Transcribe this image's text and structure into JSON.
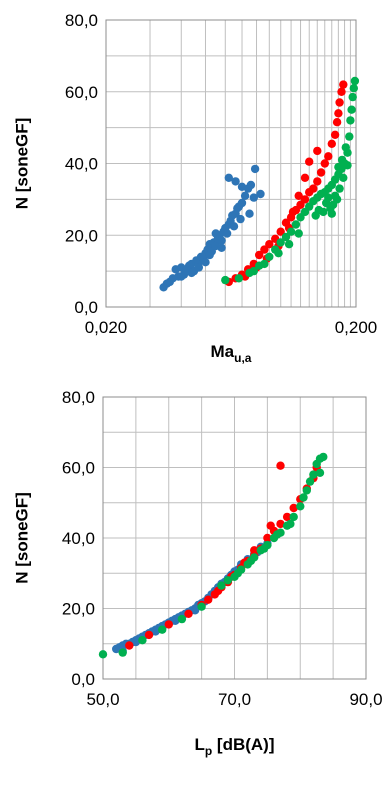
{
  "chart_data": [
    {
      "type": "scatter",
      "title": "",
      "x_scale": "log",
      "xlim": [
        0.02,
        0.2
      ],
      "ylim": [
        0,
        80
      ],
      "xlabel": {
        "main": "Ma",
        "sub": "u,a"
      },
      "ylabel": "N [soneGF]",
      "x_tick_labels": [
        "0,020",
        "0,200"
      ],
      "y_tick_labels": [
        "0,0",
        "20,0",
        "40,0",
        "60,0",
        "80,0"
      ],
      "x_ticks": [
        0.02,
        0.2
      ],
      "y_ticks": [
        0,
        20,
        40,
        60,
        80
      ],
      "x_grid": [
        0.02,
        0.03,
        0.04,
        0.05,
        0.06,
        0.07,
        0.08,
        0.09,
        0.1,
        0.11,
        0.12,
        0.13,
        0.14,
        0.15,
        0.16,
        0.17,
        0.18,
        0.19,
        0.2
      ],
      "y_grid": [
        0,
        10,
        20,
        30,
        40,
        50,
        60,
        70,
        80
      ],
      "grid": true,
      "legend": "none",
      "series": [
        {
          "color": "#2e75b6",
          "points": [
            [
              0.034,
              5.5
            ],
            [
              0.035,
              6.5
            ],
            [
              0.036,
              7.0
            ],
            [
              0.037,
              8.0
            ],
            [
              0.038,
              10.5
            ],
            [
              0.039,
              8.5
            ],
            [
              0.04,
              11.0
            ],
            [
              0.041,
              9.0
            ],
            [
              0.042,
              10.5
            ],
            [
              0.043,
              11.5
            ],
            [
              0.044,
              12.0
            ],
            [
              0.045,
              10.0
            ],
            [
              0.046,
              13.0
            ],
            [
              0.047,
              12.5
            ],
            [
              0.048,
              14.0
            ],
            [
              0.049,
              13.5
            ],
            [
              0.05,
              15.0
            ],
            [
              0.051,
              16.0
            ],
            [
              0.052,
              17.5
            ],
            [
              0.053,
              15.5
            ],
            [
              0.054,
              18.0
            ],
            [
              0.055,
              17.0
            ],
            [
              0.056,
              19.0
            ],
            [
              0.057,
              20.0
            ],
            [
              0.058,
              18.5
            ],
            [
              0.059,
              21.0
            ],
            [
              0.06,
              22.0
            ],
            [
              0.061,
              20.5
            ],
            [
              0.062,
              23.0
            ],
            [
              0.063,
              24.0
            ],
            [
              0.064,
              25.5
            ],
            [
              0.065,
              22.5
            ],
            [
              0.066,
              26.0
            ],
            [
              0.067,
              27.5
            ],
            [
              0.068,
              28.0
            ],
            [
              0.069,
              24.5
            ],
            [
              0.07,
              29.0
            ],
            [
              0.072,
              31.0
            ],
            [
              0.074,
              33.0
            ],
            [
              0.076,
              34.0
            ],
            [
              0.062,
              36.0
            ],
            [
              0.066,
              35.0
            ],
            [
              0.07,
              33.5
            ],
            [
              0.079,
              38.5
            ],
            [
              0.083,
              31.5
            ],
            [
              0.078,
              30.5
            ],
            [
              0.075,
              26.0
            ],
            [
              0.058,
              16.5
            ],
            [
              0.052,
              14.5
            ],
            [
              0.047,
              11.0
            ],
            [
              0.044,
              9.5
            ],
            [
              0.04,
              8.5
            ],
            [
              0.055,
              20.5
            ],
            [
              0.05,
              12.5
            ]
          ]
        },
        {
          "color": "#ff0000",
          "points": [
            [
              0.062,
              7.0
            ],
            [
              0.066,
              8.0
            ],
            [
              0.07,
              9.0
            ],
            [
              0.074,
              10.5
            ],
            [
              0.078,
              12.0
            ],
            [
              0.082,
              14.5
            ],
            [
              0.086,
              16.0
            ],
            [
              0.09,
              17.5
            ],
            [
              0.095,
              19.0
            ],
            [
              0.1,
              21.0
            ],
            [
              0.105,
              23.5
            ],
            [
              0.11,
              25.0
            ],
            [
              0.115,
              27.0
            ],
            [
              0.12,
              28.5
            ],
            [
              0.125,
              30.0
            ],
            [
              0.13,
              32.0
            ],
            [
              0.135,
              33.0
            ],
            [
              0.14,
              35.0
            ],
            [
              0.145,
              37.5
            ],
            [
              0.15,
              40.0
            ],
            [
              0.155,
              42.0
            ],
            [
              0.16,
              45.5
            ],
            [
              0.165,
              48.0
            ],
            [
              0.168,
              51.5
            ],
            [
              0.17,
              54.0
            ],
            [
              0.172,
              57.0
            ],
            [
              0.175,
              60.0
            ],
            [
              0.178,
              62.0
            ],
            [
              0.14,
              43.5
            ],
            [
              0.13,
              40.5
            ],
            [
              0.125,
              36.0
            ],
            [
              0.118,
              31.0
            ],
            [
              0.112,
              26.5
            ],
            [
              0.108,
              22.0
            ],
            [
              0.098,
              17.0
            ],
            [
              0.088,
              13.5
            ],
            [
              0.08,
              11.0
            ],
            [
              0.072,
              8.5
            ]
          ]
        },
        {
          "color": "#00b050",
          "points": [
            [
              0.06,
              7.5
            ],
            [
              0.068,
              8.0
            ],
            [
              0.075,
              9.5
            ],
            [
              0.082,
              11.5
            ],
            [
              0.09,
              14.0
            ],
            [
              0.095,
              16.0
            ],
            [
              0.1,
              18.0
            ],
            [
              0.105,
              19.5
            ],
            [
              0.11,
              21.0
            ],
            [
              0.115,
              23.0
            ],
            [
              0.12,
              25.0
            ],
            [
              0.125,
              26.5
            ],
            [
              0.13,
              28.0
            ],
            [
              0.135,
              29.5
            ],
            [
              0.14,
              30.5
            ],
            [
              0.145,
              31.5
            ],
            [
              0.15,
              32.0
            ],
            [
              0.155,
              33.0
            ],
            [
              0.16,
              34.0
            ],
            [
              0.165,
              35.5
            ],
            [
              0.17,
              37.0
            ],
            [
              0.175,
              38.5
            ],
            [
              0.18,
              40.0
            ],
            [
              0.185,
              43.0
            ],
            [
              0.188,
              47.5
            ],
            [
              0.19,
              52.0
            ],
            [
              0.192,
              55.0
            ],
            [
              0.194,
              58.5
            ],
            [
              0.196,
              61.0
            ],
            [
              0.198,
              63.0
            ],
            [
              0.185,
              39.5
            ],
            [
              0.178,
              36.0
            ],
            [
              0.172,
              33.0
            ],
            [
              0.168,
              30.0
            ],
            [
              0.162,
              28.5
            ],
            [
              0.158,
              27.5
            ],
            [
              0.152,
              29.0
            ],
            [
              0.148,
              26.5
            ],
            [
              0.142,
              27.0
            ],
            [
              0.138,
              25.5
            ],
            [
              0.118,
              20.5
            ],
            [
              0.108,
              17.5
            ],
            [
              0.098,
              15.0
            ],
            [
              0.086,
              12.0
            ],
            [
              0.078,
              10.0
            ],
            [
              0.182,
              44.5
            ],
            [
              0.176,
              41.0
            ],
            [
              0.17,
              39.0
            ],
            [
              0.165,
              31.0
            ],
            [
              0.16,
              26.0
            ],
            [
              0.155,
              30.5
            ]
          ]
        }
      ]
    },
    {
      "type": "scatter",
      "title": "",
      "x_scale": "linear",
      "xlim": [
        50,
        90
      ],
      "ylim": [
        0,
        80
      ],
      "xlabel": {
        "main": "L",
        "sub": "p",
        "rest": " [dB(A)]"
      },
      "ylabel": "N [soneGF]",
      "x_tick_labels": [
        "50,0",
        "70,0",
        "90,0"
      ],
      "y_tick_labels": [
        "0,0",
        "20,0",
        "40,0",
        "60,0",
        "80,0"
      ],
      "x_ticks": [
        50,
        70,
        90
      ],
      "y_ticks": [
        0,
        20,
        40,
        60,
        80
      ],
      "x_grid": [
        50,
        55,
        60,
        65,
        70,
        75,
        80,
        85,
        90
      ],
      "y_grid": [
        0,
        10,
        20,
        30,
        40,
        50,
        60,
        70,
        80
      ],
      "grid": true,
      "legend": "none",
      "series": [
        {
          "color": "#2e75b6",
          "points": [
            [
              52.0,
              8.5
            ],
            [
              52.5,
              9.0
            ],
            [
              53.0,
              9.5
            ],
            [
              53.5,
              10.0
            ],
            [
              54.0,
              10.0
            ],
            [
              54.5,
              10.5
            ],
            [
              55.0,
              11.0
            ],
            [
              55.5,
              11.5
            ],
            [
              56.0,
              12.0
            ],
            [
              56.5,
              12.5
            ],
            [
              57.0,
              13.0
            ],
            [
              57.5,
              13.5
            ],
            [
              58.0,
              14.0
            ],
            [
              58.5,
              14.5
            ],
            [
              59.0,
              15.0
            ],
            [
              59.5,
              15.5
            ],
            [
              60.0,
              16.0
            ],
            [
              60.5,
              16.5
            ],
            [
              61.0,
              17.0
            ],
            [
              61.5,
              17.5
            ],
            [
              62.0,
              18.0
            ],
            [
              62.5,
              18.5
            ],
            [
              63.0,
              19.0
            ],
            [
              63.5,
              19.5
            ],
            [
              64.0,
              20.0
            ],
            [
              64.5,
              21.0
            ],
            [
              65.0,
              21.5
            ],
            [
              65.5,
              22.0
            ],
            [
              66.0,
              23.0
            ],
            [
              66.5,
              24.0
            ],
            [
              67.0,
              25.0
            ],
            [
              67.5,
              26.0
            ],
            [
              68.0,
              27.0
            ],
            [
              68.5,
              27.5
            ],
            [
              69.0,
              28.5
            ],
            [
              69.5,
              29.5
            ],
            [
              70.0,
              30.5
            ],
            [
              71.0,
              32.5
            ],
            [
              72.0,
              34.0
            ],
            [
              73.0,
              35.5
            ],
            [
              74.0,
              37.5
            ],
            [
              75.0,
              38.5
            ],
            [
              53.0,
              8.0
            ],
            [
              55.0,
              10.5
            ],
            [
              58.0,
              13.5
            ],
            [
              61.0,
              16.5
            ],
            [
              64.0,
              19.5
            ],
            [
              67.0,
              24.5
            ],
            [
              70.5,
              31.0
            ],
            [
              73.5,
              36.0
            ]
          ]
        },
        {
          "color": "#ff0000",
          "points": [
            [
              54.0,
              9.5
            ],
            [
              57.0,
              12.5
            ],
            [
              60.0,
              15.5
            ],
            [
              63.0,
              18.5
            ],
            [
              65.0,
              21.0
            ],
            [
              66.0,
              22.5
            ],
            [
              67.0,
              24.0
            ],
            [
              68.0,
              26.0
            ],
            [
              69.0,
              27.5
            ],
            [
              70.0,
              29.5
            ],
            [
              71.0,
              31.5
            ],
            [
              72.0,
              33.5
            ],
            [
              73.0,
              35.0
            ],
            [
              74.0,
              37.0
            ],
            [
              75.0,
              40.0
            ],
            [
              76.0,
              42.0
            ],
            [
              77.0,
              44.0
            ],
            [
              78.0,
              46.0
            ],
            [
              79.0,
              48.5
            ],
            [
              80.0,
              51.0
            ],
            [
              81.0,
              54.0
            ],
            [
              82.0,
              57.0
            ],
            [
              82.5,
              60.0
            ],
            [
              77.0,
              60.5
            ],
            [
              75.5,
              43.5
            ],
            [
              73.0,
              36.5
            ],
            [
              71.5,
              33.0
            ],
            [
              69.5,
              29.0
            ],
            [
              67.5,
              25.0
            ]
          ]
        },
        {
          "color": "#00b050",
          "points": [
            [
              50.0,
              7.0
            ],
            [
              53.0,
              7.5
            ],
            [
              56.0,
              11.0
            ],
            [
              59.0,
              14.0
            ],
            [
              62.0,
              17.0
            ],
            [
              65.0,
              20.5
            ],
            [
              68.0,
              26.5
            ],
            [
              70.0,
              29.0
            ],
            [
              71.0,
              31.0
            ],
            [
              72.0,
              32.5
            ],
            [
              73.0,
              34.5
            ],
            [
              74.0,
              36.5
            ],
            [
              75.0,
              38.0
            ],
            [
              76.0,
              40.0
            ],
            [
              77.0,
              41.5
            ],
            [
              78.0,
              43.5
            ],
            [
              79.0,
              46.0
            ],
            [
              80.0,
              49.0
            ],
            [
              80.5,
              51.5
            ],
            [
              81.0,
              53.5
            ],
            [
              81.5,
              56.0
            ],
            [
              82.0,
              58.0
            ],
            [
              82.5,
              61.0
            ],
            [
              83.0,
              62.5
            ],
            [
              83.5,
              63.0
            ],
            [
              83.0,
              58.5
            ],
            [
              78.5,
              44.0
            ],
            [
              76.5,
              41.0
            ],
            [
              74.5,
              37.0
            ],
            [
              72.5,
              33.5
            ],
            [
              70.5,
              30.0
            ],
            [
              69.0,
              28.0
            ]
          ]
        }
      ]
    }
  ]
}
